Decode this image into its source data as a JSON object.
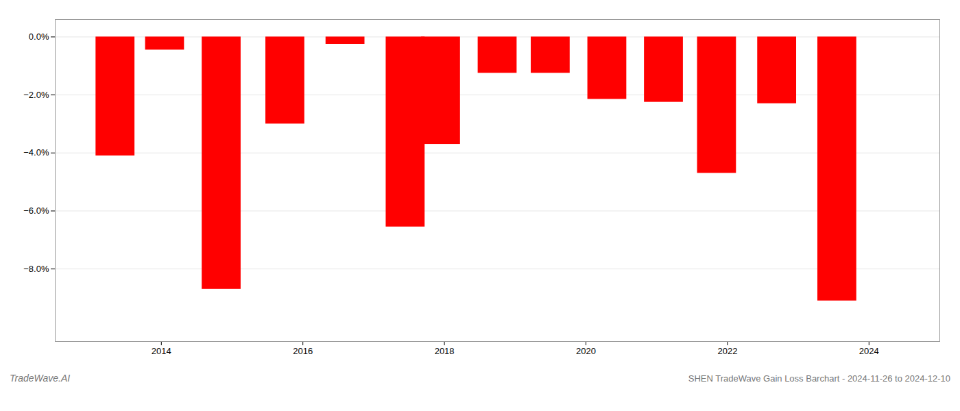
{
  "chart_data": {
    "type": "bar",
    "title": "SHEN TradeWave Gain Loss Barchart - 2024-11-26 to 2024-12-10",
    "annotations": [
      "TradeWave.AI"
    ],
    "x": [
      2013.35,
      2014.05,
      2014.85,
      2015.75,
      2016.6,
      2017.45,
      2017.95,
      2018.75,
      2019.5,
      2020.3,
      2021.1,
      2021.85,
      2022.7,
      2023.55
    ],
    "values": [
      -4.1,
      -0.45,
      -8.7,
      -3.0,
      -0.25,
      -6.55,
      -3.7,
      -1.25,
      -1.25,
      -2.15,
      -2.25,
      -4.7,
      -2.3,
      -9.1
    ],
    "color": "#ff0000",
    "xlim": [
      2012.5,
      2025.0
    ],
    "ylim": [
      -10.5,
      0.6
    ],
    "xticks": [
      2014,
      2016,
      2018,
      2020,
      2022,
      2024
    ],
    "yticks": [
      {
        "value": 0.0,
        "label": "0.0%"
      },
      {
        "value": -2.0,
        "label": "−2.0%"
      },
      {
        "value": -4.0,
        "label": "−4.0%"
      },
      {
        "value": -6.0,
        "label": "−6.0%"
      },
      {
        "value": -8.0,
        "label": "−8.0%"
      }
    ],
    "grid": true
  }
}
